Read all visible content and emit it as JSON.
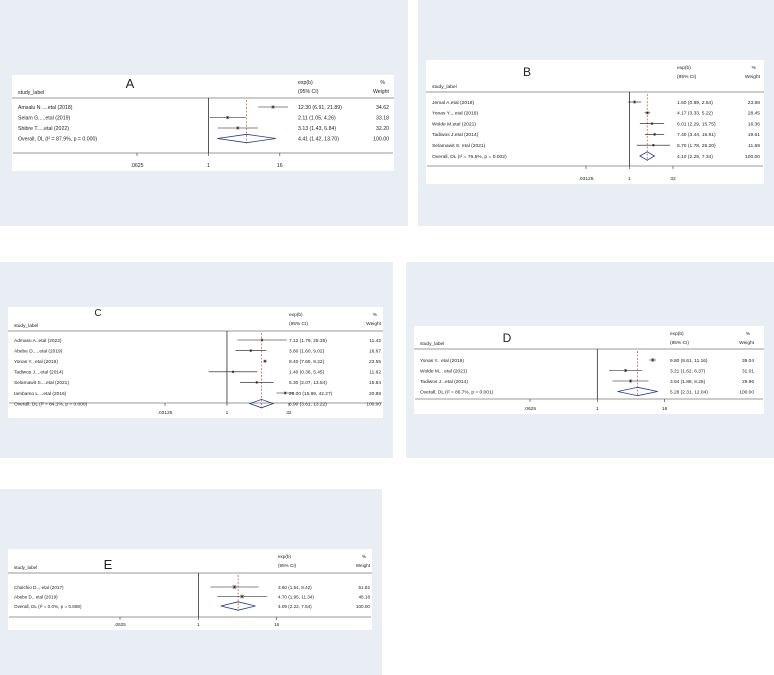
{
  "chart_data": [
    {
      "type": "forest",
      "panel_letter": "A",
      "row_label_header": "study_label",
      "effect_header": "exp(b)",
      "ci_header": "(95% CI)",
      "weight_pct_header": "%",
      "weight_header": "Weight",
      "x_scale": "log",
      "x_ticks": [
        ".0625",
        "1",
        "16"
      ],
      "x_tick_values": [
        0.0625,
        1,
        16
      ],
      "x_range": [
        0.0625,
        30
      ],
      "overall_line_value": 4.41,
      "rows": [
        {
          "label": "Amsalu N ....etal  (2018)",
          "est": 12.3,
          "lo": 6.91,
          "hi": 21.89,
          "text": "12.30 (6.91, 21.89)",
          "weight": "34.62",
          "w": 34.62
        },
        {
          "label": "Selam G.....etal (2019)",
          "est": 2.11,
          "lo": 1.05,
          "hi": 4.26,
          "text": "2.11 (1.05, 4.26)",
          "weight": "33.18",
          "w": 33.18
        },
        {
          "label": "Shibre T.....etal (2022)",
          "est": 3.13,
          "lo": 1.43,
          "hi": 6.84,
          "text": "3.13 (1.43, 6.84)",
          "weight": "32.20",
          "w": 32.2
        }
      ],
      "overall": {
        "label": "Overall, DL (I² = 87.9%, p = 0.000)",
        "est": 4.41,
        "lo": 1.42,
        "hi": 13.7,
        "text": "4.41 (1.42, 13.70)",
        "weight": "100.00"
      }
    },
    {
      "type": "forest",
      "panel_letter": "B",
      "row_label_header": "study_label",
      "effect_header": "exp(b)",
      "ci_header": "(95% CI)",
      "weight_pct_header": "%",
      "weight_header": "Weight",
      "x_scale": "log",
      "x_ticks": [
        ".03125",
        "1",
        "32"
      ],
      "x_tick_values": [
        0.03125,
        1,
        32
      ],
      "x_range": [
        0.03125,
        32
      ],
      "overall_line_value": 4.1,
      "rows": [
        {
          "label": "Jemal A.etal (2018)",
          "est": 1.5,
          "lo": 0.89,
          "hi": 2.54,
          "text": "1.50 (0.89, 2.54)",
          "weight": "23.88",
          "w": 23.88
        },
        {
          "label": "Yonas Y.., etal (2019)",
          "est": 4.17,
          "lo": 3.33,
          "hi": 5.22,
          "text": "4.17 (3.33, 5.22)",
          "weight": "28.45",
          "w": 28.45
        },
        {
          "label": "Wolde M.etal (2021)",
          "est": 6.01,
          "lo": 2.29,
          "hi": 15.75,
          "text": "6.01 (2.29, 15.75)",
          "weight": "16.36",
          "w": 16.36
        },
        {
          "label": "Tadiwos J.etal (2014)",
          "est": 7.4,
          "lo": 3.44,
          "hi": 15.91,
          "text": "7.40 (3.44, 15.91)",
          "weight": "19.61",
          "w": 19.61
        },
        {
          "label": "Selamawit S. etal (2021)",
          "est": 6.7,
          "lo": 1.78,
          "hi": 25.2,
          "text": "6.70 (1.78, 25.20)",
          "weight": "11.69",
          "w": 11.69
        }
      ],
      "overall": {
        "label": "Overall, DL (I² = 76.5%, p = 0.002)",
        "est": 4.1,
        "lo": 2.29,
        "hi": 7.34,
        "text": "4.10 (2.29, 7.34)",
        "weight": "100.00"
      }
    },
    {
      "type": "forest",
      "panel_letter": "C",
      "row_label_header": "study_label",
      "effect_header": "exp(b)",
      "ci_header": "(95% CI)",
      "weight_pct_header": "%",
      "weight_header": "Weight",
      "x_scale": "log",
      "x_ticks": [
        ".03125",
        "1",
        "32"
      ],
      "x_tick_values": [
        0.03125,
        1,
        32
      ],
      "x_range": [
        0.03125,
        45
      ],
      "overall_line_value": 6.9,
      "rows": [
        {
          "label": "Admasu A..etal (2022)",
          "est": 7.12,
          "lo": 1.79,
          "hi": 28.35,
          "text": "7.12 (1.79, 28.35)",
          "weight": "11.42",
          "w": 11.42
        },
        {
          "label": "Abebe D.....etal (2019)",
          "est": 3.8,
          "lo": 1.6,
          "hi": 9.02,
          "text": "3.80 (1.60, 9.02)",
          "weight": "16.67",
          "w": 16.67
        },
        {
          "label": "Yonas Y.. etal (2019)",
          "est": 8.4,
          "lo": 7.65,
          "hi": 9.22,
          "text": "8.40 (7.65, 9.22)",
          "weight": "23.55",
          "w": 23.55
        },
        {
          "label": "Tadiwos J....etal (2014)",
          "est": 1.4,
          "lo": 0.36,
          "hi": 5.45,
          "text": "1.40 (0.36, 5.45)",
          "weight": "11.62",
          "w": 11.62
        },
        {
          "label": "Selamawit S....etal (2021)",
          "est": 5.3,
          "lo": 2.07,
          "hi": 13.54,
          "text": "5.30 (2.07, 13.54)",
          "weight": "15.84",
          "w": 15.84
        },
        {
          "label": "Iambamo L....etal (2016)",
          "est": 26.0,
          "lo": 15.99,
          "hi": 42.27,
          "text": "26.00 (15.99, 42.27)",
          "weight": "20.89",
          "w": 20.89
        }
      ],
      "overall": {
        "label": "Overall, DL (I² = 84.1%, p = 0.000)",
        "est": 6.9,
        "lo": 3.61,
        "hi": 13.22,
        "text": "6.90 (3.61, 13.22)",
        "weight": "100.00"
      }
    },
    {
      "type": "forest",
      "panel_letter": "D",
      "row_label_header": "study_label",
      "effect_header": "exp(b)",
      "ci_header": "(95% CI)",
      "weight_pct_header": "%",
      "weight_header": "Weight",
      "x_scale": "log",
      "x_ticks": [
        ".0625",
        "1",
        "16"
      ],
      "x_tick_values": [
        0.0625,
        1,
        16
      ],
      "x_range": [
        0.0625,
        20
      ],
      "overall_line_value": 5.28,
      "rows": [
        {
          "label": "Yonas Y.. etal (2019)",
          "est": 9.8,
          "lo": 8.61,
          "hi": 11.16,
          "text": "9.80 (8.61, 11.16)",
          "weight": "39.04",
          "w": 39.04
        },
        {
          "label": "Wolde M... etal (2021)",
          "est": 3.21,
          "lo": 1.62,
          "hi": 6.37,
          "text": "3.21 (1.62, 6.37)",
          "weight": "31.01",
          "w": 31.01
        },
        {
          "label": "Tadiwos J...etal (2014)",
          "est": 3.94,
          "lo": 1.88,
          "hi": 8.25,
          "text": "3.94 (1.88, 8.25)",
          "weight": "29.96",
          "w": 29.96
        }
      ],
      "overall": {
        "label": "Overall, DL (I² = 86.7%, p = 0.001)",
        "est": 5.28,
        "lo": 2.31,
        "hi": 12.04,
        "text": "5.28 (2.31, 12.04)",
        "weight": "100.00"
      }
    },
    {
      "type": "forest",
      "panel_letter": "E",
      "row_label_header": "study_label",
      "effect_header": "exp(b)",
      "ci_header": "(95% CI)",
      "weight_pct_header": "%",
      "weight_header": "Weight",
      "x_scale": "log",
      "x_ticks": [
        ".0625",
        "1",
        "16"
      ],
      "x_tick_values": [
        0.0625,
        1,
        16
      ],
      "x_range": [
        0.0625,
        18
      ],
      "overall_line_value": 4.09,
      "rows": [
        {
          "label": "Chalchio D.., etal (2017)",
          "est": 3.6,
          "lo": 1.54,
          "hi": 8.42,
          "text": "3.60 (1.54, 8.42)",
          "weight": "51.82",
          "w": 51.82
        },
        {
          "label": "Abebe D.. etal (2019)",
          "est": 4.7,
          "lo": 1.95,
          "hi": 11.34,
          "text": "4.70 (1.95, 11.34)",
          "weight": "48.18",
          "w": 48.18
        }
      ],
      "overall": {
        "label": "Overall, DL (I² = 0.0%, p = 0.698)",
        "est": 4.09,
        "lo": 2.22,
        "hi": 7.54,
        "text": "4.09 (2.22, 7.54)",
        "weight": "100.00"
      }
    }
  ]
}
